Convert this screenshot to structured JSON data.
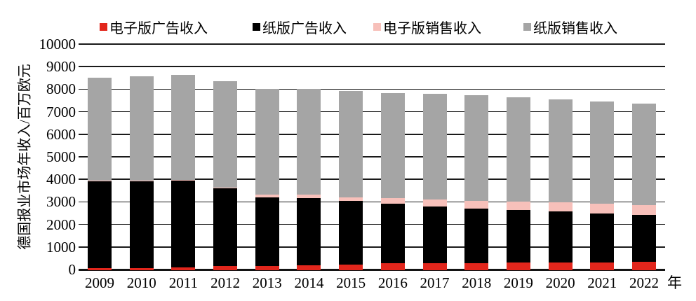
{
  "chart_data": {
    "type": "bar",
    "stacked": true,
    "title": "",
    "categories": [
      "2009",
      "2010",
      "2011",
      "2012",
      "2013",
      "2014",
      "2015",
      "2016",
      "2017",
      "2018",
      "2019",
      "2020",
      "2021",
      "2022"
    ],
    "x_axis_unit": "年",
    "ylabel": "德国报业市场年收入/百万欧元",
    "ylim": [
      0,
      10000
    ],
    "yticks": [
      0,
      1000,
      2000,
      3000,
      4000,
      5000,
      6000,
      7000,
      8000,
      9000,
      10000
    ],
    "grid": true,
    "legend_position": "top",
    "series": [
      {
        "name": "电子版广告收入",
        "color": "#e2261c",
        "values": [
          80,
          100,
          130,
          180,
          200,
          220,
          240,
          300,
          310,
          310,
          330,
          330,
          340,
          360
        ]
      },
      {
        "name": "纸版广告收入",
        "color": "#000000",
        "values": [
          3890,
          3875,
          3845,
          3450,
          3040,
          2990,
          2825,
          2655,
          2520,
          2415,
          2350,
          2270,
          2175,
          2080
        ]
      },
      {
        "name": "电子版销售收入",
        "color": "#f7c0ba",
        "values": [
          10,
          15,
          20,
          45,
          125,
          140,
          175,
          230,
          300,
          350,
          360,
          420,
          450,
          455
        ]
      },
      {
        "name": "纸版销售收入",
        "color": "#a5a5a5",
        "values": [
          4570,
          4610,
          4655,
          4715,
          4685,
          4680,
          4710,
          4685,
          4690,
          4685,
          4640,
          4550,
          4535,
          4505
        ]
      }
    ],
    "totals": [
      8550,
      8600,
      8650,
      8390,
      8050,
      8030,
      7950,
      7870,
      7820,
      7760,
      7680,
      7570,
      7500,
      7400
    ]
  }
}
